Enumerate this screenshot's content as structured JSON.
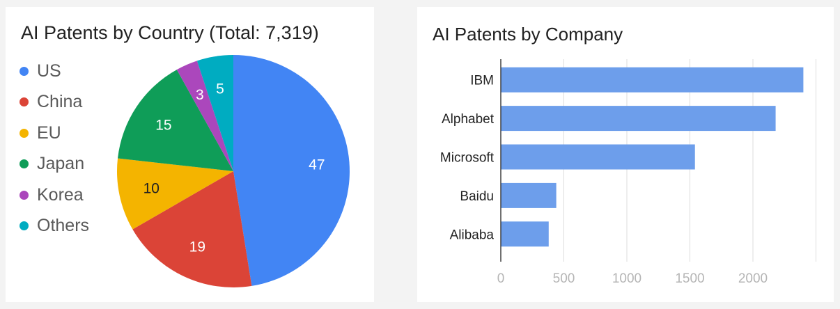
{
  "chart_data": [
    {
      "type": "pie",
      "title": "AI Patents by Country (Total: 7,319)",
      "legend_position": "left",
      "categories": [
        "US",
        "China",
        "EU",
        "Japan",
        "Korea",
        "Others"
      ],
      "values": [
        47,
        19,
        10,
        15,
        3,
        5
      ],
      "colors": [
        "#4285f4",
        "#db4437",
        "#f4b400",
        "#0f9d58",
        "#ab47bc",
        "#00acc1"
      ],
      "label_colors": [
        "#ffffff",
        "#ffffff",
        "#212121",
        "#ffffff",
        "#ffffff",
        "#ffffff"
      ]
    },
    {
      "type": "bar",
      "orientation": "horizontal",
      "title": "AI Patents by Company",
      "categories": [
        "IBM",
        "Alphabet",
        "Microsoft",
        "Baidu",
        "Alibaba"
      ],
      "values": [
        2400,
        2180,
        1540,
        440,
        380
      ],
      "xticks": [
        0,
        500,
        1000,
        1500,
        2000
      ],
      "xlim": [
        0,
        2500
      ],
      "grid": true,
      "bar_color": "#6d9eeb",
      "xlabel": "",
      "ylabel": ""
    }
  ]
}
